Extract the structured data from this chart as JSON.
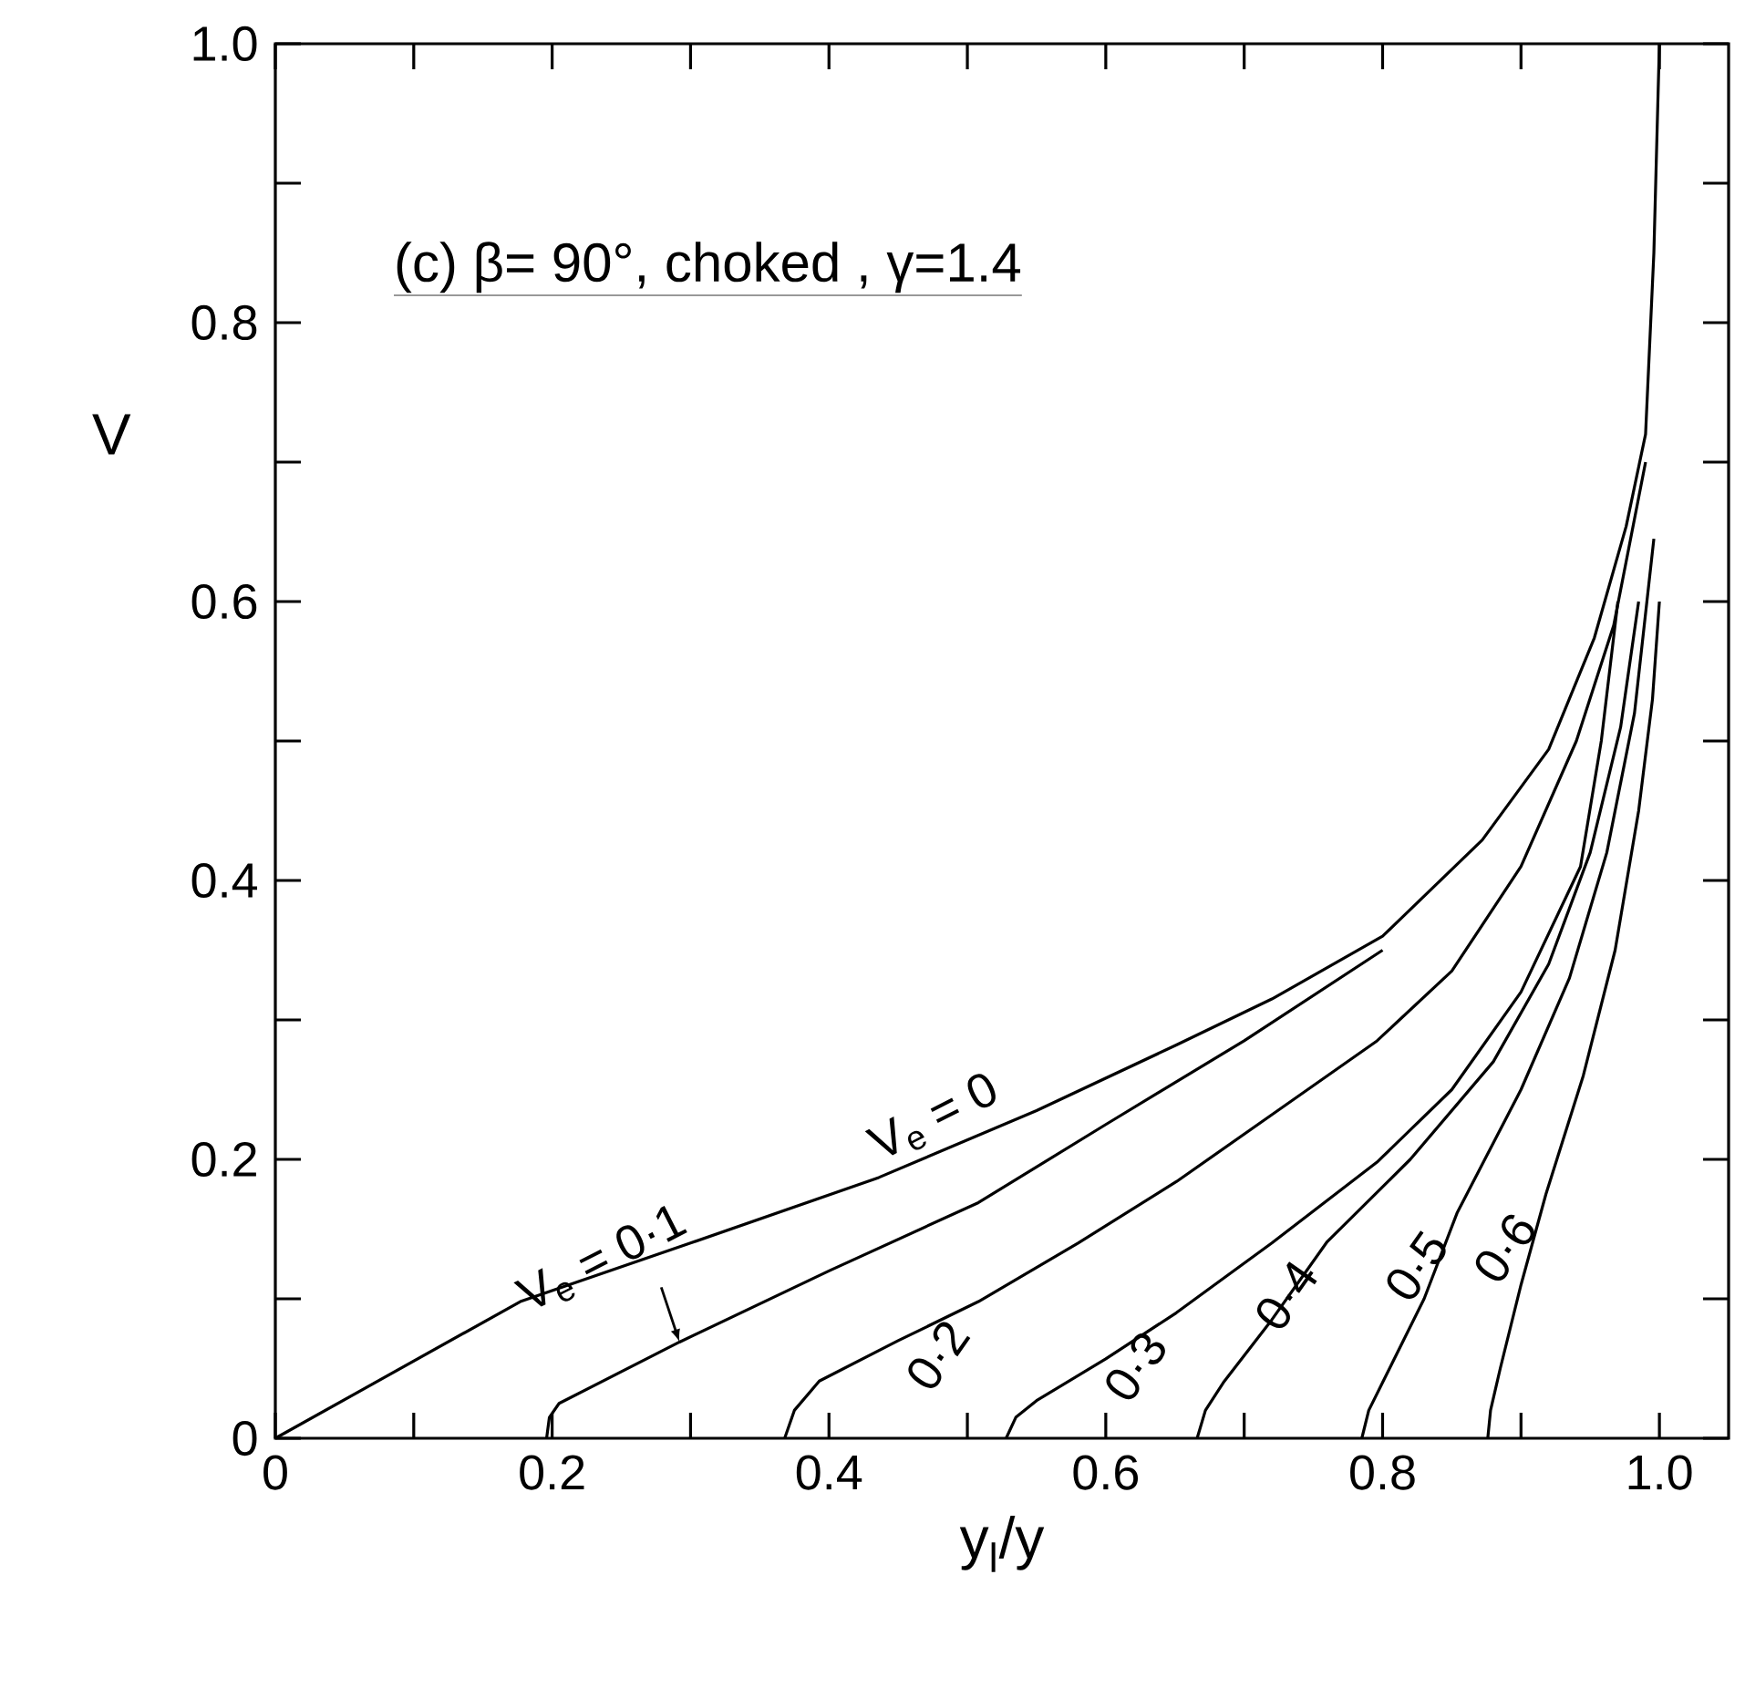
{
  "chart_data": {
    "type": "line",
    "title": "(c) β= 90°, choked , γ=1.4",
    "xlabel": "y$_{l}$/y",
    "ylabel": "V",
    "xlim": [
      0,
      1.05
    ],
    "ylim": [
      0,
      1.0
    ],
    "xticks": [
      0,
      {
        "value": 0.1,
        "label": null
      },
      0.2,
      {
        "value": 0.3,
        "label": null
      },
      0.4,
      {
        "value": 0.5,
        "label": null
      },
      0.6,
      {
        "value": 0.7,
        "label": null
      },
      0.8,
      {
        "value": 0.9,
        "label": null
      },
      {
        "value": 1.0,
        "label": "1.0"
      }
    ],
    "yticks": [
      0,
      {
        "value": 0.1,
        "label": null
      },
      0.2,
      {
        "value": 0.3,
        "label": null
      },
      0.4,
      {
        "value": 0.5,
        "label": null
      },
      0.6,
      {
        "value": 0.7,
        "label": null
      },
      0.8,
      {
        "value": 0.9,
        "label": null
      },
      {
        "value": 1.0,
        "label": "1.0"
      }
    ],
    "grid": false,
    "marker": "none",
    "line_style": "solid",
    "series": [
      {
        "color": "#000000",
        "x": [
          0,
          0.177,
          0.3,
          0.436,
          0.55,
          0.651,
          0.72,
          0.8,
          0.872,
          0.92,
          0.953,
          0.976,
          0.99,
          0.996,
          1.0
        ],
        "values": [
          0,
          0.098,
          0.14,
          0.187,
          0.235,
          0.282,
          0.315,
          0.36,
          0.429,
          0.494,
          0.574,
          0.654,
          0.72,
          0.85,
          1.0
        ]
      },
      {
        "color": "#000000",
        "x": [
          0.196,
          0.198,
          0.205,
          0.292,
          0.4,
          0.508,
          0.6,
          0.7,
          0.8
        ],
        "values": [
          0,
          0.015,
          0.025,
          0.069,
          0.12,
          0.169,
          0.225,
          0.285,
          0.35
        ]
      },
      {
        "color": "#000000",
        "x": [
          0.368,
          0.375,
          0.393,
          0.45,
          0.508,
          0.58,
          0.651,
          0.72,
          0.796,
          0.85,
          0.9,
          0.94,
          0.967,
          0.99
        ],
        "values": [
          0,
          0.02,
          0.041,
          0.07,
          0.098,
          0.14,
          0.184,
          0.232,
          0.285,
          0.335,
          0.41,
          0.5,
          0.583,
          0.7
        ]
      },
      {
        "color": "#000000",
        "x": [
          0.528,
          0.535,
          0.55,
          0.6,
          0.651,
          0.72,
          0.796,
          0.85,
          0.9,
          0.943,
          0.958,
          0.97
        ],
        "values": [
          0,
          0.015,
          0.027,
          0.057,
          0.09,
          0.14,
          0.198,
          0.25,
          0.32,
          0.41,
          0.5,
          0.6
        ]
      },
      {
        "color": "#000000",
        "x": [
          0.666,
          0.672,
          0.685,
          0.72,
          0.76,
          0.82,
          0.88,
          0.92,
          0.95,
          0.972,
          0.985
        ],
        "values": [
          0,
          0.02,
          0.04,
          0.085,
          0.141,
          0.2,
          0.27,
          0.34,
          0.42,
          0.51,
          0.6
        ]
      },
      {
        "color": "#000000",
        "x": [
          0.785,
          0.79,
          0.8,
          0.83,
          0.854,
          0.9,
          0.935,
          0.962,
          0.982,
          0.996
        ],
        "values": [
          0,
          0.02,
          0.04,
          0.1,
          0.162,
          0.25,
          0.33,
          0.42,
          0.52,
          0.645
        ]
      },
      {
        "color": "#000000",
        "x": [
          0.876,
          0.878,
          0.885,
          0.9,
          0.918,
          0.945,
          0.968,
          0.985,
          0.995,
          1.0
        ],
        "values": [
          0,
          0.02,
          0.05,
          0.11,
          0.175,
          0.26,
          0.35,
          0.45,
          0.53,
          0.6
        ]
      }
    ],
    "annotations": [
      "V$_{e}$ = 0",
      "V$_{e}$ = 0·1",
      "0·2",
      "0·3",
      "0·4",
      "0·5",
      "0·6"
    ]
  }
}
